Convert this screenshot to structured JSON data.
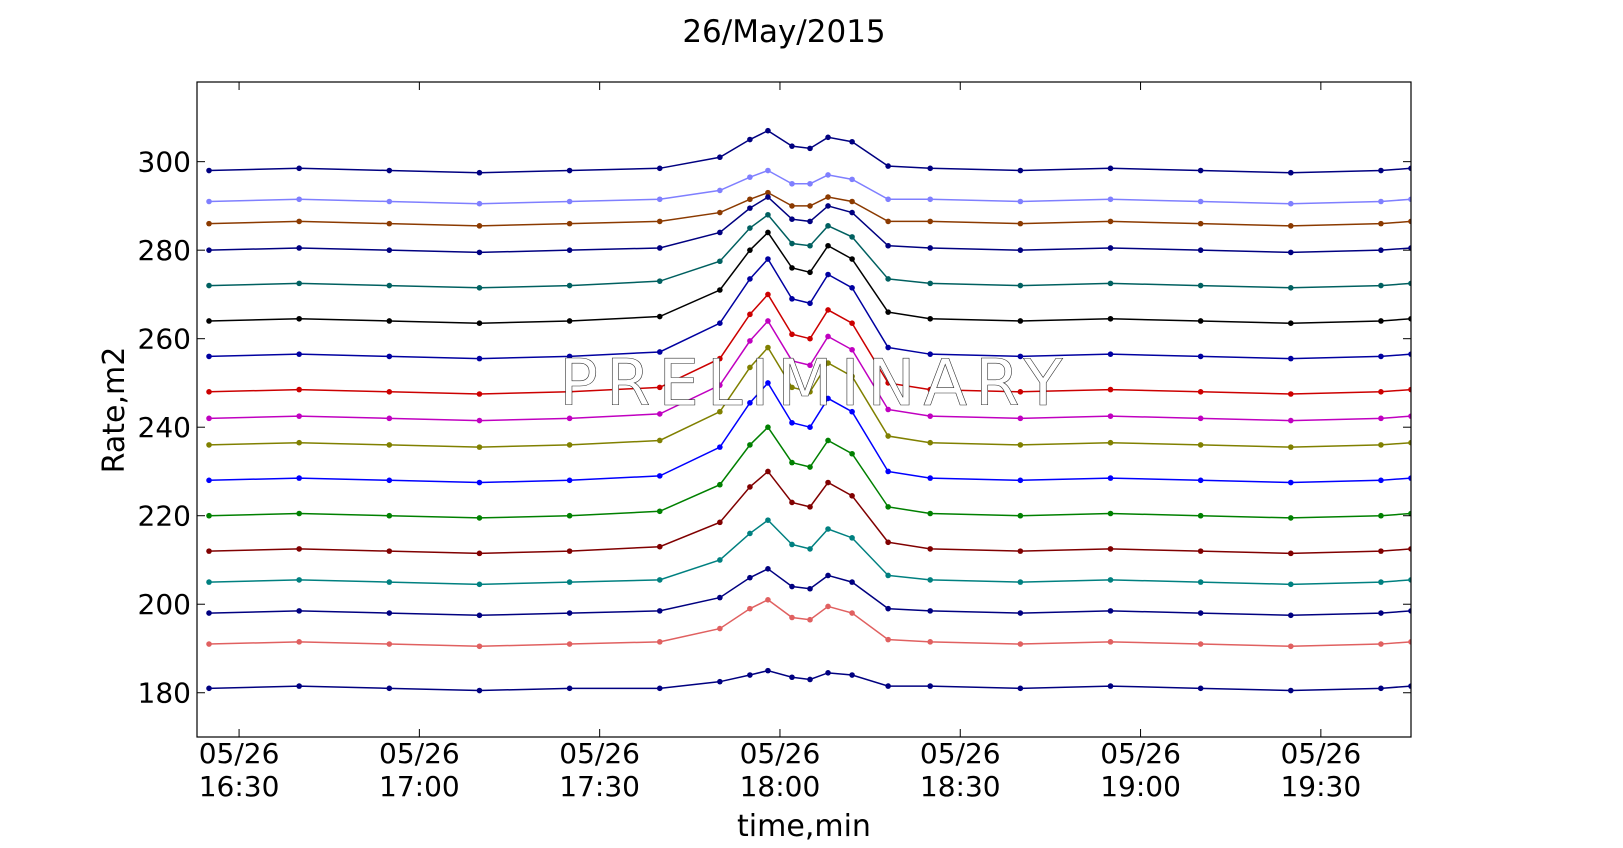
{
  "chart_data": {
    "type": "line",
    "title": "26/May/2015",
    "xlabel": "time,min",
    "ylabel": "Rate,m2",
    "watermark": "PRELIMINARY",
    "x": [
      "05/26 16:25",
      "05/26 16:40",
      "05/26 16:55",
      "05/26 17:10",
      "05/26 17:25",
      "05/26 17:40",
      "05/26 17:50",
      "05/26 17:55",
      "05/26 17:58",
      "05/26 18:02",
      "05/26 18:05",
      "05/26 18:08",
      "05/26 18:12",
      "05/26 18:18",
      "05/26 18:25",
      "05/26 18:40",
      "05/26 18:55",
      "05/26 19:10",
      "05/26 19:25",
      "05/26 19:40",
      "05/26 19:45"
    ],
    "xlim": [
      "05/26 16:23",
      "05/26 19:45"
    ],
    "xticks": [
      "05/26 16:30",
      "05/26 17:00",
      "05/26 17:30",
      "05/26 18:00",
      "05/26 18:30",
      "05/26 19:00",
      "05/26 19:30"
    ],
    "ylim": [
      170,
      318
    ],
    "yticks": [
      180,
      200,
      220,
      240,
      260,
      280,
      300
    ],
    "series": [
      {
        "color": "#000080",
        "values": [
          298,
          298.5,
          298,
          297.5,
          298,
          298.5,
          301,
          305,
          307,
          303.5,
          303,
          305.5,
          304.5,
          299,
          298.5,
          298,
          298.5,
          298,
          297.5,
          298,
          298.5
        ]
      },
      {
        "color": "#7f7fff",
        "values": [
          291,
          291.5,
          291,
          290.5,
          291,
          291.5,
          293.5,
          296.5,
          298,
          295,
          295,
          297,
          296,
          291.5,
          291.5,
          291,
          291.5,
          291,
          290.5,
          291,
          291.5
        ]
      },
      {
        "color": "#8b3a00",
        "values": [
          286,
          286.5,
          286,
          285.5,
          286,
          286.5,
          288.5,
          291.5,
          293,
          290,
          290,
          292,
          291,
          286.5,
          286.5,
          286,
          286.5,
          286,
          285.5,
          286,
          286.5
        ]
      },
      {
        "color": "#000080",
        "values": [
          280,
          280.5,
          280,
          279.5,
          280,
          280.5,
          284,
          289.5,
          292,
          287,
          286.5,
          290,
          288.5,
          281,
          280.5,
          280,
          280.5,
          280,
          279.5,
          280,
          280.5
        ]
      },
      {
        "color": "#006060",
        "values": [
          272,
          272.5,
          272,
          271.5,
          272,
          273,
          277.5,
          285,
          288,
          281.5,
          281,
          285.5,
          283,
          273.5,
          272.5,
          272,
          272.5,
          272,
          271.5,
          272,
          272.5
        ]
      },
      {
        "color": "#000000",
        "values": [
          264,
          264.5,
          264,
          263.5,
          264,
          265,
          271,
          280,
          284,
          276,
          275,
          281,
          278,
          266,
          264.5,
          264,
          264.5,
          264,
          263.5,
          264,
          264.5
        ]
      },
      {
        "color": "#0000a0",
        "values": [
          256,
          256.5,
          256,
          255.5,
          256,
          257,
          263.5,
          273.5,
          278,
          269,
          268,
          274.5,
          271.5,
          258,
          256.5,
          256,
          256.5,
          256,
          255.5,
          256,
          256.5
        ]
      },
      {
        "color": "#cc0000",
        "values": [
          248,
          248.5,
          248,
          247.5,
          248,
          249,
          255.5,
          265.5,
          270,
          261,
          260,
          266.5,
          263.5,
          250,
          248.5,
          248,
          248.5,
          248,
          247.5,
          248,
          248.5
        ]
      },
      {
        "color": "#c000c0",
        "values": [
          242,
          242.5,
          242,
          241.5,
          242,
          243,
          249.5,
          259.5,
          264,
          255,
          254,
          260.5,
          257.5,
          244,
          242.5,
          242,
          242.5,
          242,
          241.5,
          242,
          242.5
        ]
      },
      {
        "color": "#808000",
        "values": [
          236,
          236.5,
          236,
          235.5,
          236,
          237,
          243.5,
          253.5,
          258,
          249,
          248,
          254.5,
          251.5,
          238,
          236.5,
          236,
          236.5,
          236,
          235.5,
          236,
          236.5
        ]
      },
      {
        "color": "#0000ff",
        "values": [
          228,
          228.5,
          228,
          227.5,
          228,
          229,
          235.5,
          245.5,
          250,
          241,
          240,
          246.5,
          243.5,
          230,
          228.5,
          228,
          228.5,
          228,
          227.5,
          228,
          228.5
        ]
      },
      {
        "color": "#008000",
        "values": [
          220,
          220.5,
          220,
          219.5,
          220,
          221,
          227,
          236,
          240,
          232,
          231,
          237,
          234,
          222,
          220.5,
          220,
          220.5,
          220,
          219.5,
          220,
          220.5
        ]
      },
      {
        "color": "#800000",
        "values": [
          212,
          212.5,
          212,
          211.5,
          212,
          213,
          218.5,
          226.5,
          230,
          223,
          222,
          227.5,
          224.5,
          214,
          212.5,
          212,
          212.5,
          212,
          211.5,
          212,
          212.5
        ]
      },
      {
        "color": "#008080",
        "values": [
          205,
          205.5,
          205,
          204.5,
          205,
          205.5,
          210,
          216,
          219,
          213.5,
          212.5,
          217,
          215,
          206.5,
          205.5,
          205,
          205.5,
          205,
          204.5,
          205,
          205.5
        ]
      },
      {
        "color": "#000080",
        "values": [
          198,
          198.5,
          198,
          197.5,
          198,
          198.5,
          201.5,
          206,
          208,
          204,
          203.5,
          206.5,
          205,
          199,
          198.5,
          198,
          198.5,
          198,
          197.5,
          198,
          198.5
        ]
      },
      {
        "color": "#e06060",
        "values": [
          191,
          191.5,
          191,
          190.5,
          191,
          191.5,
          194.5,
          199,
          201,
          197,
          196.5,
          199.5,
          198,
          192,
          191.5,
          191,
          191.5,
          191,
          190.5,
          191,
          191.5
        ]
      },
      {
        "color": "#000080",
        "values": [
          181,
          181.5,
          181,
          180.5,
          181,
          181,
          182.5,
          184,
          185,
          183.5,
          183,
          184.5,
          184,
          181.5,
          181.5,
          181,
          181.5,
          181,
          180.5,
          181,
          181.5
        ]
      }
    ]
  }
}
